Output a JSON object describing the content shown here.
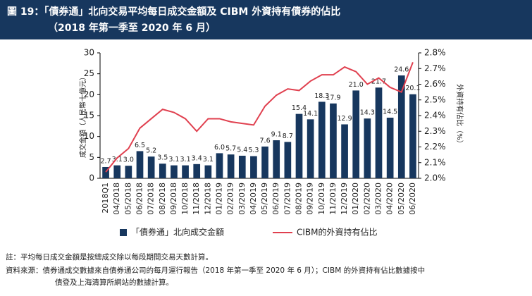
{
  "chart_data": {
    "type": "bar",
    "title": "圖 19：「債券通」北向交易平均每日成交金額及 CIBM 外資持有債券的佔比",
    "subtitle": "（2018 年第一季至 2020 年 6 月）",
    "ylabel": "成交金額（人民幣十億元）",
    "y2label": "外資持有佔比（%）",
    "categories": [
      "2018Q1",
      "04/2018",
      "05/2018",
      "06/2018",
      "07/2018",
      "08/2018",
      "09/2018",
      "10/2018",
      "11/2018",
      "12/2018",
      "01/2019",
      "02/2019",
      "03/2019",
      "04/2019",
      "05/2019",
      "06/2019",
      "07/2019",
      "08/2019",
      "09/2019",
      "10/2019",
      "11/2019",
      "12/2019",
      "01/2020",
      "02/2020",
      "03/2020",
      "04/2020",
      "05/2020",
      "06/2020"
    ],
    "series": [
      {
        "name": "「債券通」北向成交金額",
        "type": "bar",
        "color": "#17375e",
        "values": [
          2.7,
          3.1,
          3.0,
          6.5,
          5.2,
          3.5,
          3.1,
          3.1,
          3.4,
          3.1,
          6.0,
          5.7,
          5.4,
          5.3,
          7.6,
          9.1,
          8.7,
          15.4,
          14.1,
          18.3,
          17.9,
          12.9,
          21.0,
          14.3,
          21.7,
          14.5,
          24.6,
          20.1
        ],
        "value_labels": [
          "2.7",
          "3.1",
          "3.0",
          "6.5",
          "5.2",
          "3.5",
          "3.1",
          "3.1",
          "3.4",
          "3.1",
          "6.0",
          "5.7",
          "5.4",
          "5.3",
          "7.6",
          "9.1",
          "8.7",
          "15.4",
          "14.1",
          "18.3",
          "17.9",
          "12.9",
          "21.0",
          "14.3",
          "21.7",
          "14.5",
          "24.6",
          "20.1"
        ]
      },
      {
        "name": "CIBM的外資持有佔比",
        "type": "line",
        "color": "#e0404f",
        "axis": "y2",
        "values": [
          2.04,
          2.13,
          2.19,
          2.32,
          2.38,
          2.44,
          2.42,
          2.38,
          2.3,
          2.38,
          2.38,
          2.36,
          2.35,
          2.34,
          2.46,
          2.53,
          2.57,
          2.56,
          2.62,
          2.66,
          2.66,
          2.71,
          2.68,
          2.6,
          2.64,
          2.58,
          2.55,
          2.74
        ]
      }
    ],
    "ylim": [
      0,
      30
    ],
    "yticks": [
      0,
      5,
      10,
      15,
      20,
      25,
      30
    ],
    "y2lim": [
      2.0,
      2.8
    ],
    "y2ticks": [
      {
        "value": 2.0,
        "label": "2.0%"
      },
      {
        "value": 2.1,
        "label": "2.1%"
      },
      {
        "value": 2.2,
        "label": "2.2%"
      },
      {
        "value": 2.3,
        "label": "2.3%"
      },
      {
        "value": 2.4,
        "label": "2.4%"
      },
      {
        "value": 2.5,
        "label": "2.5%"
      },
      {
        "value": 2.6,
        "label": "2.6%"
      },
      {
        "value": 2.7,
        "label": "2.7%"
      },
      {
        "value": 2.8,
        "label": "2.8%"
      }
    ]
  },
  "notes": [
    "註：平均每日成交金額是按總成交除以每段期間交易天數計算。",
    "資料來源：債券通成交數據來自債券通公司的每月運行報告（2018 年第一季至 2020 年 6 月）；CIBM 的外資持有佔比數據按中",
    "債登及上海清算所網站的數據計算。"
  ]
}
